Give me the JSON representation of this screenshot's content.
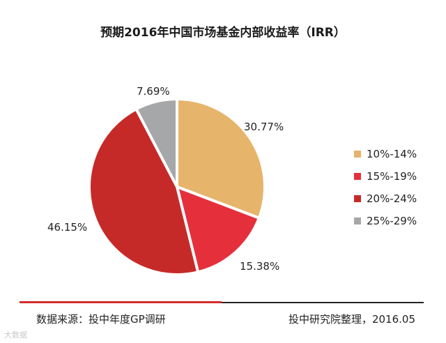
{
  "chart_data": {
    "type": "pie",
    "title": "预期2016年中国市场基金内部收益率（IRR）",
    "categories": [
      "10%-14%",
      "15%-19%",
      "20%-24%",
      "25%-29%"
    ],
    "values": [
      30.77,
      15.38,
      46.15,
      7.69
    ],
    "labels": [
      "30.77%",
      "15.38%",
      "46.15%",
      "7.69%"
    ],
    "colors": [
      "#e6b46b",
      "#e5303c",
      "#c62a28",
      "#a6a7a9"
    ],
    "legend_position": "right"
  },
  "footer": {
    "source": "数据来源：投中年度GP调研",
    "credit": "投中研究院整理，2016.05"
  },
  "watermark": "大数据"
}
